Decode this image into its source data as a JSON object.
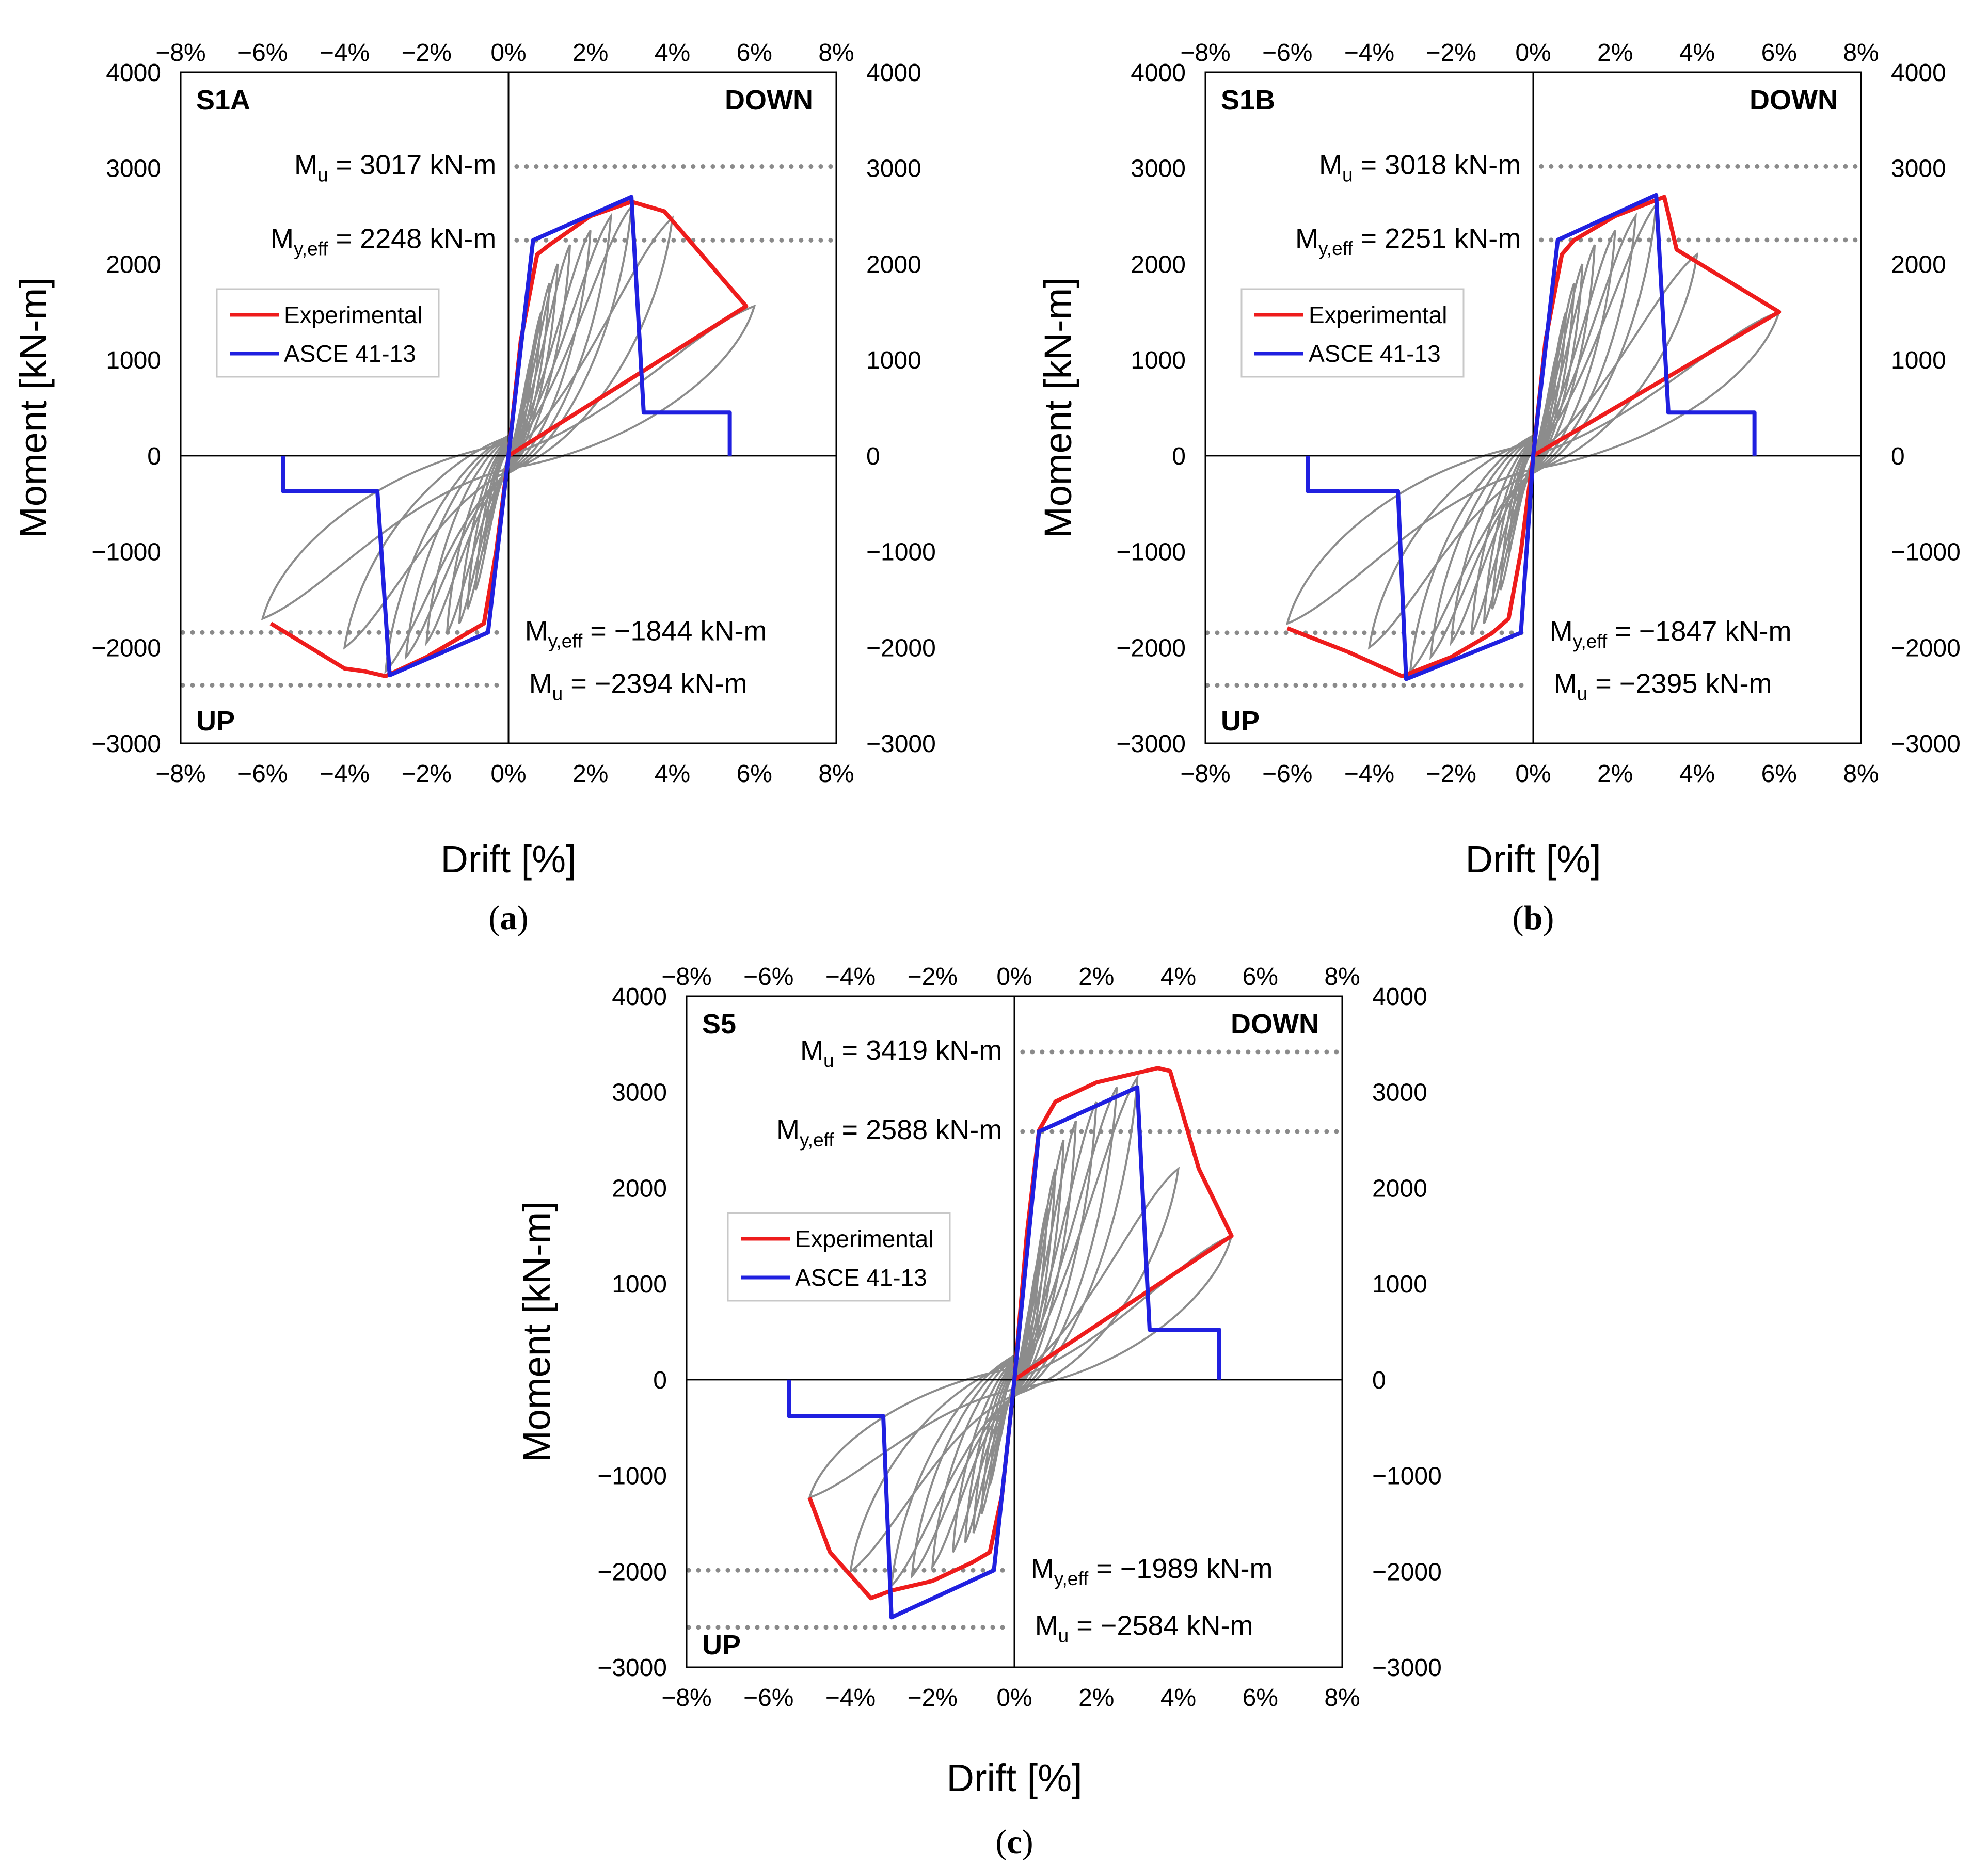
{
  "style": {
    "experimental_color": "#ee1c1c",
    "asce_color": "#2020e0",
    "hysteresis_color": "#8c8c8c",
    "reference_line_color": "#8a8a8a"
  },
  "chart_data": [
    {
      "type": "line",
      "panel": "a",
      "caption_letter": "a",
      "specimen": "S1A",
      "top_right_label": "DOWN",
      "bottom_left_label": "UP",
      "xlabel": "Drift [%]",
      "ylabel": "Moment [kN-m]",
      "xlim": [
        -8,
        8
      ],
      "ylim": [
        -3000,
        4000
      ],
      "x_ticks": [
        -8,
        -6,
        -4,
        -2,
        0,
        2,
        4,
        6,
        8
      ],
      "x_tick_labels": [
        "−8%",
        "−6%",
        "−4%",
        "−2%",
        "0%",
        "2%",
        "4%",
        "6%",
        "8%"
      ],
      "y_ticks": [
        -3000,
        -2000,
        -1000,
        0,
        1000,
        2000,
        3000,
        4000
      ],
      "y_tick_labels": [
        "−3000",
        "−2000",
        "−1000",
        "0",
        "1000",
        "2000",
        "3000",
        "4000"
      ],
      "legend": [
        "Experimental",
        "ASCE 41-13"
      ],
      "annotations": {
        "mu_pos": {
          "main": "M",
          "sub": "u",
          "rest": " = 3017 kN-m",
          "value": 3017
        },
        "my_pos": {
          "main": "M",
          "sub": "y,eff",
          "rest": " = 2248 kN-m",
          "value": 2248
        },
        "my_neg": {
          "main": "M",
          "sub": "y,eff",
          "rest": " = −1844 kN-m",
          "value": -1844
        },
        "mu_neg": {
          "main": "M",
          "sub": "u",
          "rest": " = −2394 kN-m",
          "value": -2394
        }
      },
      "series": [
        {
          "name": "Experimental",
          "points": [
            [
              0,
              0
            ],
            [
              0.3,
              1200
            ],
            [
              0.7,
              2100
            ],
            [
              1,
              2200
            ],
            [
              2,
              2500
            ],
            [
              3,
              2650
            ],
            [
              3.8,
              2550
            ],
            [
              5.8,
              1560
            ],
            [
              0,
              0
            ],
            [
              -0.3,
              -1000
            ],
            [
              -0.6,
              -1750
            ],
            [
              -1,
              -1850
            ],
            [
              -2,
              -2100
            ],
            [
              -3,
              -2300
            ],
            [
              -3.5,
              -2250
            ],
            [
              -4,
              -2220
            ],
            [
              -5.8,
              -1750
            ]
          ]
        },
        {
          "name": "ASCE 41-13",
          "points": [
            [
              -5.5,
              0
            ],
            [
              -5.5,
              -370
            ],
            [
              -3.2,
              -370
            ],
            [
              -2.9,
              -2290
            ],
            [
              -0.5,
              -1844
            ],
            [
              0,
              0
            ],
            [
              0.6,
              2248
            ],
            [
              3,
              2700
            ],
            [
              3.3,
              450
            ],
            [
              5.4,
              450
            ],
            [
              5.4,
              0
            ]
          ]
        }
      ],
      "hysteresis_peaks": [
        [
          0.4,
          650,
          -0.4,
          -600
        ],
        [
          0.6,
          1100,
          -0.6,
          -1000
        ],
        [
          0.8,
          1500,
          -0.8,
          -1400
        ],
        [
          1,
          1800,
          -1,
          -1600
        ],
        [
          1.2,
          2000,
          -1.2,
          -1750
        ],
        [
          1.5,
          2200,
          -1.5,
          -1850
        ],
        [
          2,
          2350,
          -2,
          -1950
        ],
        [
          2.5,
          2500,
          -2.5,
          -2100
        ],
        [
          3,
          2600,
          -3,
          -2250
        ],
        [
          4,
          2480,
          -4,
          -2000
        ],
        [
          6,
          1560,
          -6,
          -1700
        ]
      ]
    },
    {
      "type": "line",
      "panel": "b",
      "caption_letter": "b",
      "specimen": "S1B",
      "top_right_label": "DOWN",
      "bottom_left_label": "UP",
      "xlabel": "Drift [%]",
      "ylabel": "Moment [kN-m]",
      "xlim": [
        -8,
        8
      ],
      "ylim": [
        -3000,
        4000
      ],
      "x_ticks": [
        -8,
        -6,
        -4,
        -2,
        0,
        2,
        4,
        6,
        8
      ],
      "x_tick_labels": [
        "−8%",
        "−6%",
        "−4%",
        "−2%",
        "0%",
        "2%",
        "4%",
        "6%",
        "8%"
      ],
      "y_ticks": [
        -3000,
        -2000,
        -1000,
        0,
        1000,
        2000,
        3000,
        4000
      ],
      "y_tick_labels": [
        "−3000",
        "−2000",
        "−1000",
        "0",
        "1000",
        "2000",
        "3000",
        "4000"
      ],
      "legend": [
        "Experimental",
        "ASCE 41-13"
      ],
      "annotations": {
        "mu_pos": {
          "main": "M",
          "sub": "u",
          "rest": " = 3018 kN-m",
          "value": 3018
        },
        "my_pos": {
          "main": "M",
          "sub": "y,eff",
          "rest": " = 2251 kN-m",
          "value": 2251
        },
        "my_neg": {
          "main": "M",
          "sub": "y,eff",
          "rest": " = −1847 kN-m",
          "value": -1847
        },
        "mu_neg": {
          "main": "M",
          "sub": "u",
          "rest": " = −2395 kN-m",
          "value": -2395
        }
      },
      "series": [
        {
          "name": "Experimental",
          "points": [
            [
              0,
              0
            ],
            [
              0.3,
              1200
            ],
            [
              0.7,
              2100
            ],
            [
              1,
              2250
            ],
            [
              2,
              2500
            ],
            [
              3.2,
              2700
            ],
            [
              3.5,
              2150
            ],
            [
              6,
              1500
            ],
            [
              0,
              0
            ],
            [
              -0.3,
              -1000
            ],
            [
              -0.6,
              -1700
            ],
            [
              -1,
              -1850
            ],
            [
              -2,
              -2100
            ],
            [
              -3.2,
              -2300
            ],
            [
              -4.5,
              -2050
            ],
            [
              -6,
              -1800
            ]
          ]
        },
        {
          "name": "ASCE 41-13",
          "points": [
            [
              -5.5,
              0
            ],
            [
              -5.5,
              -370
            ],
            [
              -3.3,
              -370
            ],
            [
              -3.1,
              -2330
            ],
            [
              -0.3,
              -1847
            ],
            [
              0,
              0
            ],
            [
              0.6,
              2251
            ],
            [
              3,
              2720
            ],
            [
              3.3,
              450
            ],
            [
              5.4,
              450
            ],
            [
              5.4,
              0
            ]
          ]
        }
      ],
      "hysteresis_peaks": [
        [
          0.4,
          650,
          -0.4,
          -600
        ],
        [
          0.6,
          1100,
          -0.6,
          -1000
        ],
        [
          0.8,
          1500,
          -0.8,
          -1400
        ],
        [
          1,
          1800,
          -1,
          -1600
        ],
        [
          1.2,
          2000,
          -1.2,
          -1750
        ],
        [
          1.5,
          2200,
          -1.5,
          -1850
        ],
        [
          2,
          2350,
          -2,
          -1950
        ],
        [
          2.5,
          2500,
          -2.5,
          -2100
        ],
        [
          3,
          2620,
          -3,
          -2250
        ],
        [
          4,
          2100,
          -4,
          -2000
        ],
        [
          6,
          1500,
          -6,
          -1750
        ]
      ]
    },
    {
      "type": "line",
      "panel": "c",
      "caption_letter": "c",
      "specimen": "S5",
      "top_right_label": "DOWN",
      "bottom_left_label": "UP",
      "xlabel": "Drift [%]",
      "ylabel": "Moment [kN-m]",
      "xlim": [
        -8,
        8
      ],
      "ylim": [
        -3000,
        4000
      ],
      "x_ticks": [
        -8,
        -6,
        -4,
        -2,
        0,
        2,
        4,
        6,
        8
      ],
      "x_tick_labels": [
        "−8%",
        "−6%",
        "−4%",
        "−2%",
        "0%",
        "2%",
        "4%",
        "6%",
        "8%"
      ],
      "y_ticks": [
        -3000,
        -2000,
        -1000,
        0,
        1000,
        2000,
        3000,
        4000
      ],
      "y_tick_labels": [
        "−3000",
        "−2000",
        "−1000",
        "0",
        "1000",
        "2000",
        "3000",
        "4000"
      ],
      "legend": [
        "Experimental",
        "ASCE 41-13"
      ],
      "annotations": {
        "mu_pos": {
          "main": "M",
          "sub": "u",
          "rest": " = 3419 kN-m",
          "value": 3419
        },
        "my_pos": {
          "main": "M",
          "sub": "y,eff",
          "rest": " = 2588 kN-m",
          "value": 2588
        },
        "my_neg": {
          "main": "M",
          "sub": "y,eff",
          "rest": " = −1989 kN-m",
          "value": -1989
        },
        "mu_neg": {
          "main": "M",
          "sub": "u",
          "rest": " = −2584 kN-m",
          "value": -2584
        }
      },
      "series": [
        {
          "name": "Experimental",
          "points": [
            [
              0,
              0
            ],
            [
              0.3,
              1500
            ],
            [
              0.6,
              2600
            ],
            [
              1,
              2900
            ],
            [
              2,
              3100
            ],
            [
              3.5,
              3250
            ],
            [
              3.8,
              3220
            ],
            [
              4.5,
              2200
            ],
            [
              5.3,
              1500
            ],
            [
              0,
              0
            ],
            [
              -0.3,
              -1200
            ],
            [
              -0.6,
              -1800
            ],
            [
              -1,
              -1900
            ],
            [
              -2,
              -2100
            ],
            [
              -3,
              -2200
            ],
            [
              -3.5,
              -2280
            ],
            [
              -4.5,
              -1800
            ],
            [
              -5,
              -1230
            ]
          ]
        },
        {
          "name": "ASCE 41-13",
          "points": [
            [
              -5.5,
              0
            ],
            [
              -5.5,
              -380
            ],
            [
              -3.2,
              -380
            ],
            [
              -3,
              -2480
            ],
            [
              -0.5,
              -1989
            ],
            [
              0,
              0
            ],
            [
              0.6,
              2588
            ],
            [
              3,
              3050
            ],
            [
              3.3,
              520
            ],
            [
              5,
              520
            ],
            [
              5,
              0
            ]
          ]
        }
      ],
      "hysteresis_peaks": [
        [
          0.4,
          800,
          -0.4,
          -700
        ],
        [
          0.6,
          1300,
          -0.6,
          -1100
        ],
        [
          0.8,
          1800,
          -0.8,
          -1400
        ],
        [
          1,
          2200,
          -1,
          -1600
        ],
        [
          1.2,
          2500,
          -1.2,
          -1700
        ],
        [
          1.5,
          2700,
          -1.5,
          -1800
        ],
        [
          2,
          2900,
          -2,
          -1950
        ],
        [
          2.5,
          3050,
          -2.5,
          -2050
        ],
        [
          3,
          3150,
          -3,
          -2150
        ],
        [
          4,
          2200,
          -4,
          -2000
        ],
        [
          5.3,
          1500,
          -5,
          -1230
        ]
      ]
    }
  ]
}
